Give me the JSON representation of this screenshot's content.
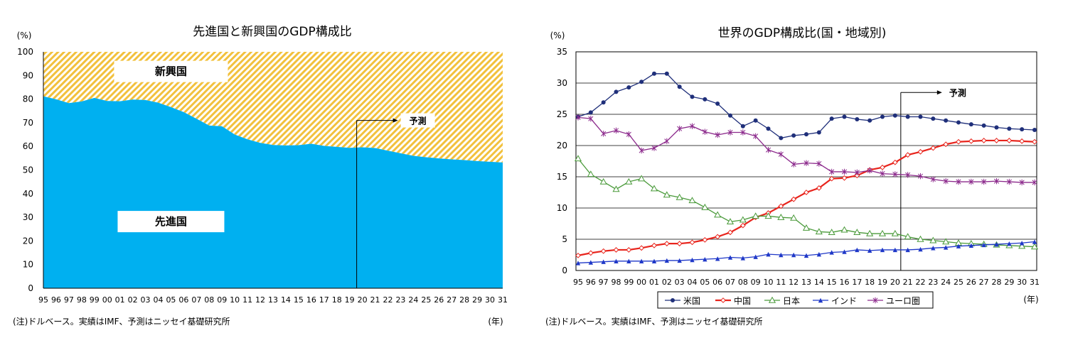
{
  "chart_data": [
    {
      "type": "area",
      "title": "先進国と新興国のGDP構成比",
      "ylabel": "(%)",
      "xlabel": "(年)",
      "ylim": [
        0,
        100
      ],
      "yticks": [
        "0",
        "10",
        "20",
        "30",
        "40",
        "50",
        "60",
        "70",
        "80",
        "90",
        "100"
      ],
      "categories": [
        "95",
        "96",
        "97",
        "98",
        "99",
        "00",
        "01",
        "02",
        "03",
        "04",
        "05",
        "06",
        "07",
        "08",
        "09",
        "10",
        "11",
        "12",
        "13",
        "14",
        "15",
        "16",
        "17",
        "18",
        "19",
        "20",
        "21",
        "22",
        "23",
        "24",
        "25",
        "26",
        "27",
        "28",
        "29",
        "30",
        "31"
      ],
      "series": [
        {
          "name": "先進国",
          "color": "#00b0f0",
          "values": [
            81.2,
            79.9,
            78.3,
            79.0,
            80.5,
            79.2,
            79.1,
            79.8,
            79.6,
            78.5,
            76.6,
            74.5,
            71.7,
            68.8,
            68.5,
            65.0,
            63.0,
            61.5,
            60.6,
            60.4,
            60.5,
            61.1,
            60.2,
            59.8,
            59.4,
            59.6,
            59.3,
            58.2,
            57.1,
            56.0,
            55.4,
            54.9,
            54.5,
            54.2,
            53.8,
            53.5,
            53.2
          ]
        },
        {
          "name": "新興国",
          "color": "#f2c13d",
          "values": [
            18.8,
            20.1,
            21.7,
            21.0,
            19.5,
            20.8,
            20.9,
            20.2,
            20.4,
            21.5,
            23.4,
            25.5,
            28.3,
            31.2,
            31.5,
            35.0,
            37.0,
            38.5,
            39.4,
            39.6,
            39.5,
            38.9,
            39.8,
            40.2,
            40.6,
            40.4,
            40.7,
            41.8,
            42.9,
            44.0,
            44.6,
            45.1,
            45.5,
            45.8,
            46.2,
            46.5,
            46.8
          ]
        }
      ],
      "forecast_start": "20",
      "forecast_label": "予測",
      "note": "(注)ドルベース。実績はIMF、予測はニッセイ基礎研究所"
    },
    {
      "type": "line",
      "title": "世界のGDP構成比(国・地域別)",
      "ylabel": "(%)",
      "xlabel": "(年)",
      "ylim": [
        0,
        35
      ],
      "yticks": [
        "0",
        "5",
        "10",
        "15",
        "20",
        "25",
        "30",
        "35"
      ],
      "categories": [
        "95",
        "96",
        "97",
        "98",
        "99",
        "00",
        "01",
        "02",
        "03",
        "04",
        "05",
        "06",
        "07",
        "08",
        "09",
        "10",
        "11",
        "12",
        "13",
        "14",
        "15",
        "16",
        "17",
        "18",
        "19",
        "20",
        "21",
        "22",
        "23",
        "24",
        "25",
        "26",
        "27",
        "28",
        "29",
        "30",
        "31"
      ],
      "series": [
        {
          "name": "米国",
          "color": "#1f2f7a",
          "marker": "circle",
          "values": [
            24.6,
            25.3,
            26.9,
            28.6,
            29.3,
            30.2,
            31.5,
            31.5,
            29.4,
            27.8,
            27.4,
            26.7,
            24.8,
            23.1,
            24.0,
            22.7,
            21.2,
            21.6,
            21.8,
            22.1,
            24.3,
            24.6,
            24.2,
            24.0,
            24.6,
            24.8,
            24.6,
            24.6,
            24.3,
            24.0,
            23.7,
            23.4,
            23.2,
            22.9,
            22.7,
            22.6,
            22.5
          ]
        },
        {
          "name": "中国",
          "color": "#e8241c",
          "marker": "diamond",
          "values": [
            2.4,
            2.8,
            3.1,
            3.3,
            3.3,
            3.6,
            4.0,
            4.3,
            4.3,
            4.5,
            4.9,
            5.4,
            6.1,
            7.2,
            8.5,
            9.2,
            10.3,
            11.4,
            12.5,
            13.2,
            14.7,
            14.8,
            15.2,
            16.1,
            16.5,
            17.3,
            18.5,
            19.0,
            19.6,
            20.2,
            20.6,
            20.7,
            20.8,
            20.8,
            20.8,
            20.7,
            20.6
          ]
        },
        {
          "name": "日本",
          "color": "#4a9a3a",
          "marker": "triangle-open",
          "values": [
            17.9,
            15.4,
            14.2,
            13.0,
            14.2,
            14.7,
            13.1,
            12.1,
            11.7,
            11.2,
            10.1,
            8.9,
            7.8,
            8.1,
            8.7,
            8.7,
            8.5,
            8.4,
            6.8,
            6.2,
            6.1,
            6.5,
            6.1,
            5.9,
            5.9,
            5.9,
            5.4,
            5.0,
            4.8,
            4.6,
            4.4,
            4.3,
            4.2,
            4.1,
            4.0,
            3.9,
            3.8
          ]
        },
        {
          "name": "インド",
          "color": "#1f38c8",
          "marker": "triangle",
          "values": [
            1.2,
            1.3,
            1.4,
            1.5,
            1.5,
            1.5,
            1.5,
            1.6,
            1.6,
            1.7,
            1.8,
            1.9,
            2.1,
            2.0,
            2.2,
            2.6,
            2.5,
            2.5,
            2.4,
            2.6,
            2.9,
            3.0,
            3.3,
            3.2,
            3.3,
            3.3,
            3.3,
            3.4,
            3.6,
            3.7,
            3.9,
            4.0,
            4.1,
            4.2,
            4.3,
            4.4,
            4.6
          ]
        },
        {
          "name": "ユーロ圏",
          "color": "#8c2a8c",
          "marker": "asterisk",
          "values": [
            24.5,
            24.3,
            21.9,
            22.4,
            21.8,
            19.2,
            19.6,
            20.7,
            22.7,
            23.1,
            22.2,
            21.7,
            22.1,
            22.1,
            21.5,
            19.3,
            18.6,
            17.0,
            17.2,
            17.1,
            15.8,
            15.8,
            15.7,
            16.0,
            15.5,
            15.4,
            15.3,
            15.1,
            14.6,
            14.3,
            14.2,
            14.2,
            14.2,
            14.3,
            14.2,
            14.1,
            14.1
          ]
        }
      ],
      "forecast_start": "20",
      "forecast_label": "予測",
      "note": "(注)ドルベース。実績はIMF、予測はニッセイ基礎研究所"
    }
  ]
}
